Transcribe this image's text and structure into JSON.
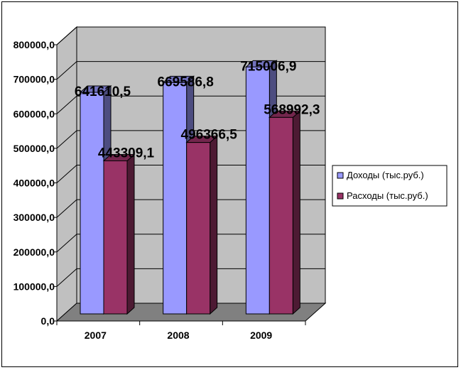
{
  "chart_data": {
    "type": "bar",
    "style": "3d-column",
    "categories": [
      "2007",
      "2008",
      "2009"
    ],
    "series": [
      {
        "name": "Доходы (тыс.руб.)",
        "values": [
          641610.5,
          669586.8,
          715006.9
        ],
        "labels": [
          "641610,5",
          "669586,8",
          "715006,9"
        ],
        "color": "#9999ff"
      },
      {
        "name": "Расходы (тыс.руб.)",
        "values": [
          443309.1,
          496366.5,
          568992.3
        ],
        "labels": [
          "443309,1",
          "496366,5",
          "568992,3"
        ],
        "color": "#993366"
      }
    ],
    "yticks": [
      0,
      100000,
      200000,
      300000,
      400000,
      500000,
      600000,
      700000,
      800000
    ],
    "ytick_labels": [
      "0,0",
      "100000,0",
      "200000,0",
      "300000,0",
      "400000,0",
      "500000,0",
      "600000,0",
      "700000,0",
      "800000,0"
    ],
    "ylim": [
      0,
      800000
    ],
    "grid": true,
    "legend": "right",
    "wall_color": "#c0c0c0",
    "floor_color": "#808080"
  }
}
